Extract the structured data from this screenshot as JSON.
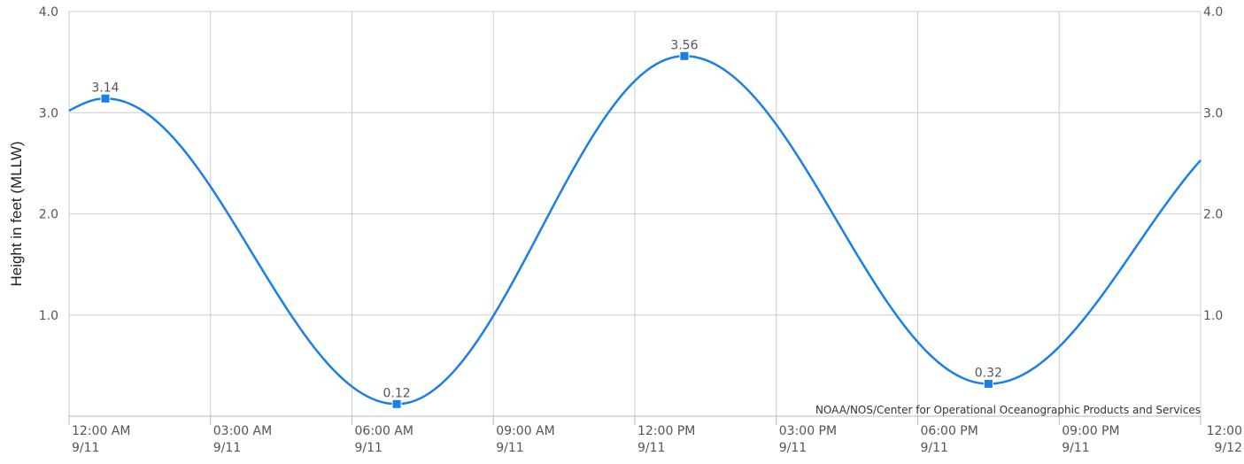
{
  "chart_data": {
    "type": "line",
    "title": "",
    "ylabel": "Height in feet (MLLW)",
    "xlabel": "",
    "credit": "NOAA/NOS/Center for Operational Oceanographic Products and Services",
    "x_range": [
      "9/11 12:00 AM",
      "9/12 12:00 AM"
    ],
    "ylim": [
      0.0,
      4.0
    ],
    "grid": true,
    "line_color": "#1a7fe6",
    "y_ticks": [
      {
        "value": 1.0,
        "label": "1.0"
      },
      {
        "value": 2.0,
        "label": "2.0"
      },
      {
        "value": 3.0,
        "label": "3.0"
      },
      {
        "value": 4.0,
        "label": "4.0"
      }
    ],
    "x_ticks": [
      {
        "hour": 0,
        "time": "12:00 AM",
        "date": "9/11"
      },
      {
        "hour": 3,
        "time": "03:00 AM",
        "date": "9/11"
      },
      {
        "hour": 6,
        "time": "06:00 AM",
        "date": "9/11"
      },
      {
        "hour": 9,
        "time": "09:00 AM",
        "date": "9/11"
      },
      {
        "hour": 12,
        "time": "12:00 PM",
        "date": "9/11"
      },
      {
        "hour": 15,
        "time": "03:00 PM",
        "date": "9/11"
      },
      {
        "hour": 18,
        "time": "06:00 PM",
        "date": "9/11"
      },
      {
        "hour": 21,
        "time": "09:00 PM",
        "date": "9/11"
      },
      {
        "hour": 24,
        "time": "12:00",
        "date": "9/12"
      }
    ],
    "series": [
      {
        "values": [
          {
            "hour": 0.0,
            "height": 3.02
          },
          {
            "hour": 0.77,
            "height": 3.14
          },
          {
            "hour": 6.95,
            "height": 0.12
          },
          {
            "hour": 13.05,
            "height": 3.56
          },
          {
            "hour": 19.5,
            "height": 0.32
          },
          {
            "hour": 24.0,
            "height": 2.53
          }
        ]
      }
    ],
    "extremes": [
      {
        "hour": 0.77,
        "height": 3.14,
        "label": "3.14"
      },
      {
        "hour": 6.95,
        "height": 0.12,
        "label": "0.12"
      },
      {
        "hour": 13.05,
        "height": 3.56,
        "label": "3.56"
      },
      {
        "hour": 19.5,
        "height": 0.32,
        "label": "0.32"
      }
    ]
  }
}
